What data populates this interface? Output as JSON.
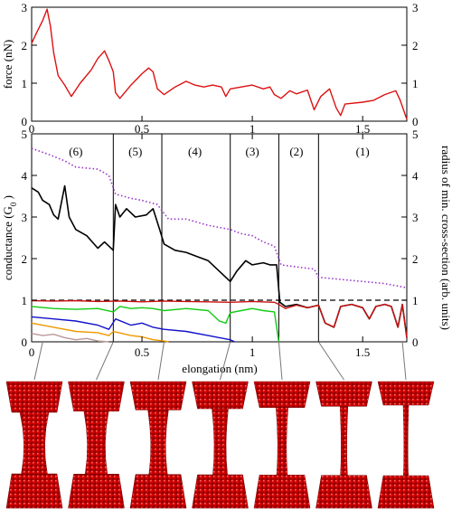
{
  "colors": {
    "force": "#dd1111",
    "total": "#000000",
    "radius": "#9933cc",
    "ch_red": "#cc1111",
    "ch_green": "#11cc11",
    "ch_blue": "#1111cc",
    "ch_orange": "#ee9900",
    "ch_brown": "#bb9999",
    "atom": "#cc0000"
  },
  "chart_data": [
    {
      "type": "line",
      "name": "force",
      "ylabel": "force (nN)",
      "xlim": [
        0,
        1.7
      ],
      "ylim": [
        0,
        3
      ],
      "y_ticks": [
        "0",
        "1",
        "2",
        "3"
      ],
      "y2_ticks": [
        "0",
        "1",
        "2",
        "3"
      ],
      "x_ticks": [
        "0",
        "0.5",
        "1",
        "1.5"
      ],
      "series": [
        {
          "color_key": "force",
          "points": [
            [
              0,
              2.05
            ],
            [
              0.02,
              2.3
            ],
            [
              0.05,
              2.65
            ],
            [
              0.07,
              2.95
            ],
            [
              0.085,
              2.5
            ],
            [
              0.1,
              1.8
            ],
            [
              0.12,
              1.2
            ],
            [
              0.15,
              0.95
            ],
            [
              0.18,
              0.65
            ],
            [
              0.22,
              1.0
            ],
            [
              0.27,
              1.35
            ],
            [
              0.3,
              1.65
            ],
            [
              0.33,
              1.85
            ],
            [
              0.35,
              1.6
            ],
            [
              0.37,
              1.3
            ],
            [
              0.38,
              0.75
            ],
            [
              0.4,
              0.6
            ],
            [
              0.45,
              0.95
            ],
            [
              0.5,
              1.25
            ],
            [
              0.53,
              1.4
            ],
            [
              0.55,
              1.3
            ],
            [
              0.57,
              0.85
            ],
            [
              0.6,
              0.7
            ],
            [
              0.65,
              0.9
            ],
            [
              0.7,
              1.05
            ],
            [
              0.74,
              0.95
            ],
            [
              0.78,
              0.9
            ],
            [
              0.82,
              0.95
            ],
            [
              0.86,
              0.9
            ],
            [
              0.88,
              0.65
            ],
            [
              0.9,
              0.85
            ],
            [
              0.95,
              0.9
            ],
            [
              1.0,
              0.95
            ],
            [
              1.05,
              0.85
            ],
            [
              1.08,
              0.9
            ],
            [
              1.1,
              0.7
            ],
            [
              1.13,
              0.6
            ],
            [
              1.17,
              0.8
            ],
            [
              1.2,
              0.72
            ],
            [
              1.25,
              0.82
            ],
            [
              1.28,
              0.3
            ],
            [
              1.31,
              0.65
            ],
            [
              1.35,
              0.85
            ],
            [
              1.38,
              0.35
            ],
            [
              1.4,
              0.15
            ],
            [
              1.42,
              0.45
            ],
            [
              1.5,
              0.5
            ],
            [
              1.55,
              0.55
            ],
            [
              1.6,
              0.7
            ],
            [
              1.65,
              0.8
            ],
            [
              1.67,
              0.55
            ],
            [
              1.7,
              0.05
            ]
          ]
        }
      ]
    },
    {
      "type": "line",
      "name": "conductance",
      "ylabel": "conductance (G",
      "ylabel_sub": "0",
      "ylabel_end": " )",
      "y2label": "radius of min. cross-section (arb. units)",
      "xlabel": "elongation (nm)",
      "xlim": [
        0,
        1.7
      ],
      "ylim": [
        0,
        5
      ],
      "x_ticks": [
        "0",
        "0.5",
        "1",
        "1.5"
      ],
      "top_x_ticks": [
        "0",
        "0.5",
        "1",
        "1.5"
      ],
      "y_ticks": [
        "0",
        "1",
        "2",
        "3",
        "4",
        "5"
      ],
      "y2_ticks": [
        "0",
        "1",
        "2",
        "3",
        "4",
        "5"
      ],
      "dashed_level": 1,
      "stage_boundaries": [
        0.37,
        0.59,
        0.9,
        1.12,
        1.3
      ],
      "stage_labels": [
        {
          "text": "(6)",
          "x": 0.2
        },
        {
          "text": "(5)",
          "x": 0.47
        },
        {
          "text": "(4)",
          "x": 0.74
        },
        {
          "text": "(3)",
          "x": 1.0
        },
        {
          "text": "(2)",
          "x": 1.2
        },
        {
          "text": "(1)",
          "x": 1.5
        }
      ],
      "series": [
        {
          "color_key": "radius",
          "style": "dotted",
          "points": [
            [
              0,
              4.65
            ],
            [
              0.08,
              4.5
            ],
            [
              0.15,
              4.35
            ],
            [
              0.2,
              4.2
            ],
            [
              0.3,
              4.15
            ],
            [
              0.35,
              4.0
            ],
            [
              0.38,
              3.55
            ],
            [
              0.45,
              3.45
            ],
            [
              0.5,
              3.4
            ],
            [
              0.57,
              3.3
            ],
            [
              0.62,
              2.95
            ],
            [
              0.7,
              2.95
            ],
            [
              0.8,
              2.8
            ],
            [
              0.85,
              2.75
            ],
            [
              0.9,
              2.7
            ],
            [
              0.95,
              2.6
            ],
            [
              1.0,
              2.55
            ],
            [
              1.05,
              2.4
            ],
            [
              1.1,
              2.3
            ],
            [
              1.13,
              1.85
            ],
            [
              1.2,
              1.8
            ],
            [
              1.28,
              1.75
            ],
            [
              1.3,
              1.55
            ],
            [
              1.4,
              1.5
            ],
            [
              1.5,
              1.45
            ],
            [
              1.6,
              1.4
            ],
            [
              1.7,
              1.3
            ]
          ]
        },
        {
          "color_key": "total",
          "style": "solid",
          "points": [
            [
              0,
              3.7
            ],
            [
              0.03,
              3.6
            ],
            [
              0.05,
              3.4
            ],
            [
              0.08,
              3.3
            ],
            [
              0.1,
              3.05
            ],
            [
              0.12,
              2.95
            ],
            [
              0.15,
              3.75
            ],
            [
              0.17,
              3.0
            ],
            [
              0.2,
              2.7
            ],
            [
              0.25,
              2.55
            ],
            [
              0.3,
              2.25
            ],
            [
              0.33,
              2.4
            ],
            [
              0.37,
              2.2
            ],
            [
              0.38,
              3.3
            ],
            [
              0.4,
              3.0
            ],
            [
              0.43,
              3.2
            ],
            [
              0.47,
              3.0
            ],
            [
              0.52,
              3.05
            ],
            [
              0.55,
              3.2
            ],
            [
              0.58,
              2.7
            ],
            [
              0.6,
              2.35
            ],
            [
              0.65,
              2.2
            ],
            [
              0.7,
              2.15
            ],
            [
              0.75,
              2.05
            ],
            [
              0.8,
              1.95
            ],
            [
              0.85,
              1.7
            ],
            [
              0.9,
              1.45
            ],
            [
              0.93,
              1.7
            ],
            [
              0.97,
              1.95
            ],
            [
              1.0,
              1.85
            ],
            [
              1.05,
              1.9
            ],
            [
              1.08,
              1.85
            ],
            [
              1.11,
              1.85
            ],
            [
              1.125,
              0.95
            ],
            [
              1.15,
              0.85
            ],
            [
              1.2,
              0.9
            ],
            [
              1.25,
              0.82
            ],
            [
              1.3,
              0.88
            ],
            [
              1.33,
              0.45
            ],
            [
              1.37,
              0.35
            ],
            [
              1.4,
              0.85
            ],
            [
              1.45,
              0.9
            ],
            [
              1.5,
              0.82
            ],
            [
              1.53,
              0.55
            ],
            [
              1.56,
              0.85
            ],
            [
              1.6,
              0.9
            ],
            [
              1.63,
              0.85
            ],
            [
              1.66,
              0.35
            ],
            [
              1.68,
              0.9
            ],
            [
              1.7,
              0.1
            ]
          ]
        },
        {
          "color_key": "ch_red",
          "style": "solid",
          "points": [
            [
              0,
              0.99
            ],
            [
              0.1,
              0.98
            ],
            [
              0.2,
              0.99
            ],
            [
              0.3,
              0.97
            ],
            [
              0.4,
              0.98
            ],
            [
              0.5,
              0.96
            ],
            [
              0.6,
              0.98
            ],
            [
              0.7,
              0.97
            ],
            [
              0.8,
              0.96
            ],
            [
              0.9,
              0.95
            ],
            [
              1.0,
              0.97
            ],
            [
              1.1,
              0.95
            ],
            [
              1.12,
              0.9
            ],
            [
              1.15,
              0.8
            ],
            [
              1.2,
              0.88
            ],
            [
              1.25,
              0.82
            ],
            [
              1.3,
              0.88
            ],
            [
              1.33,
              0.45
            ],
            [
              1.37,
              0.35
            ],
            [
              1.4,
              0.85
            ],
            [
              1.45,
              0.9
            ],
            [
              1.5,
              0.82
            ],
            [
              1.53,
              0.55
            ],
            [
              1.56,
              0.85
            ],
            [
              1.6,
              0.9
            ],
            [
              1.63,
              0.85
            ],
            [
              1.66,
              0.35
            ],
            [
              1.68,
              0.9
            ],
            [
              1.7,
              0.1
            ]
          ]
        },
        {
          "color_key": "ch_green",
          "style": "solid",
          "points": [
            [
              0,
              0.85
            ],
            [
              0.1,
              0.8
            ],
            [
              0.2,
              0.78
            ],
            [
              0.3,
              0.8
            ],
            [
              0.37,
              0.72
            ],
            [
              0.4,
              0.85
            ],
            [
              0.45,
              0.8
            ],
            [
              0.5,
              0.82
            ],
            [
              0.55,
              0.8
            ],
            [
              0.6,
              0.75
            ],
            [
              0.7,
              0.8
            ],
            [
              0.8,
              0.75
            ],
            [
              0.85,
              0.5
            ],
            [
              0.88,
              0.45
            ],
            [
              0.9,
              0.7
            ],
            [
              0.95,
              0.75
            ],
            [
              1.0,
              0.8
            ],
            [
              1.05,
              0.75
            ],
            [
              1.1,
              0.72
            ],
            [
              1.12,
              0.0
            ]
          ]
        },
        {
          "color_key": "ch_blue",
          "style": "solid",
          "points": [
            [
              0,
              0.6
            ],
            [
              0.1,
              0.55
            ],
            [
              0.2,
              0.5
            ],
            [
              0.3,
              0.4
            ],
            [
              0.35,
              0.3
            ],
            [
              0.38,
              0.55
            ],
            [
              0.45,
              0.4
            ],
            [
              0.5,
              0.45
            ],
            [
              0.55,
              0.35
            ],
            [
              0.6,
              0.3
            ],
            [
              0.7,
              0.25
            ],
            [
              0.8,
              0.15
            ],
            [
              0.85,
              0.1
            ],
            [
              0.9,
              0.05
            ],
            [
              0.92,
              0.0
            ]
          ]
        },
        {
          "color_key": "ch_orange",
          "style": "solid",
          "points": [
            [
              0,
              0.45
            ],
            [
              0.1,
              0.35
            ],
            [
              0.2,
              0.25
            ],
            [
              0.3,
              0.22
            ],
            [
              0.35,
              0.15
            ],
            [
              0.37,
              0.25
            ],
            [
              0.45,
              0.15
            ],
            [
              0.5,
              0.12
            ],
            [
              0.55,
              0.05
            ],
            [
              0.6,
              0.02
            ],
            [
              0.62,
              0.0
            ]
          ]
        },
        {
          "color_key": "ch_brown",
          "style": "solid",
          "points": [
            [
              0,
              0.2
            ],
            [
              0.05,
              0.15
            ],
            [
              0.1,
              0.18
            ],
            [
              0.15,
              0.1
            ],
            [
              0.2,
              0.05
            ],
            [
              0.25,
              0.08
            ],
            [
              0.3,
              0.02
            ],
            [
              0.35,
              0.0
            ]
          ]
        }
      ]
    }
  ],
  "snapshots": {
    "count": 7,
    "elongations": [
      0.05,
      0.37,
      0.6,
      0.9,
      1.12,
      1.3,
      1.68
    ]
  }
}
